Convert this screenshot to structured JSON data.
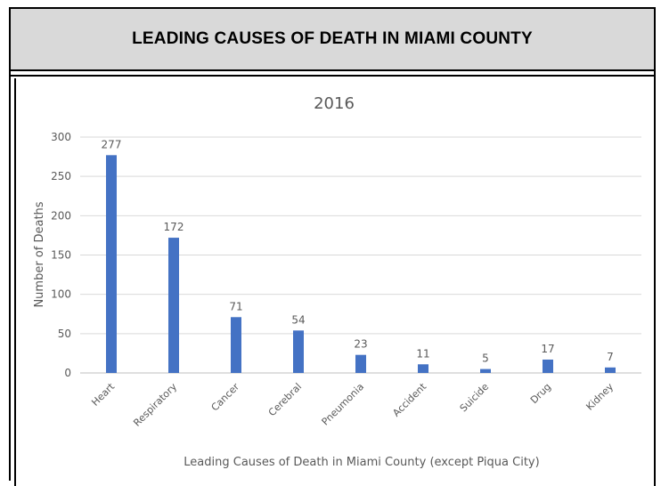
{
  "header": {
    "title": "LEADING CAUSES OF DEATH IN MIAMI COUNTY"
  },
  "chart_data": {
    "type": "bar",
    "title": "2016",
    "xlabel": "Leading Causes of Death in Miami County (except Piqua City)",
    "ylabel": "Number of Deaths",
    "categories": [
      "Heart",
      "Respiratory",
      "Cancer",
      "Cerebral",
      "Pneumonia",
      "Accident",
      "Suicide",
      "Drug",
      "Kidney"
    ],
    "values": [
      277,
      172,
      71,
      54,
      23,
      11,
      5,
      17,
      7
    ],
    "ylim": [
      0,
      300
    ],
    "yticks": [
      0,
      50,
      100,
      150,
      200,
      250,
      300
    ],
    "grid": true,
    "bar_color": "#4472c4",
    "data_labels": true
  }
}
